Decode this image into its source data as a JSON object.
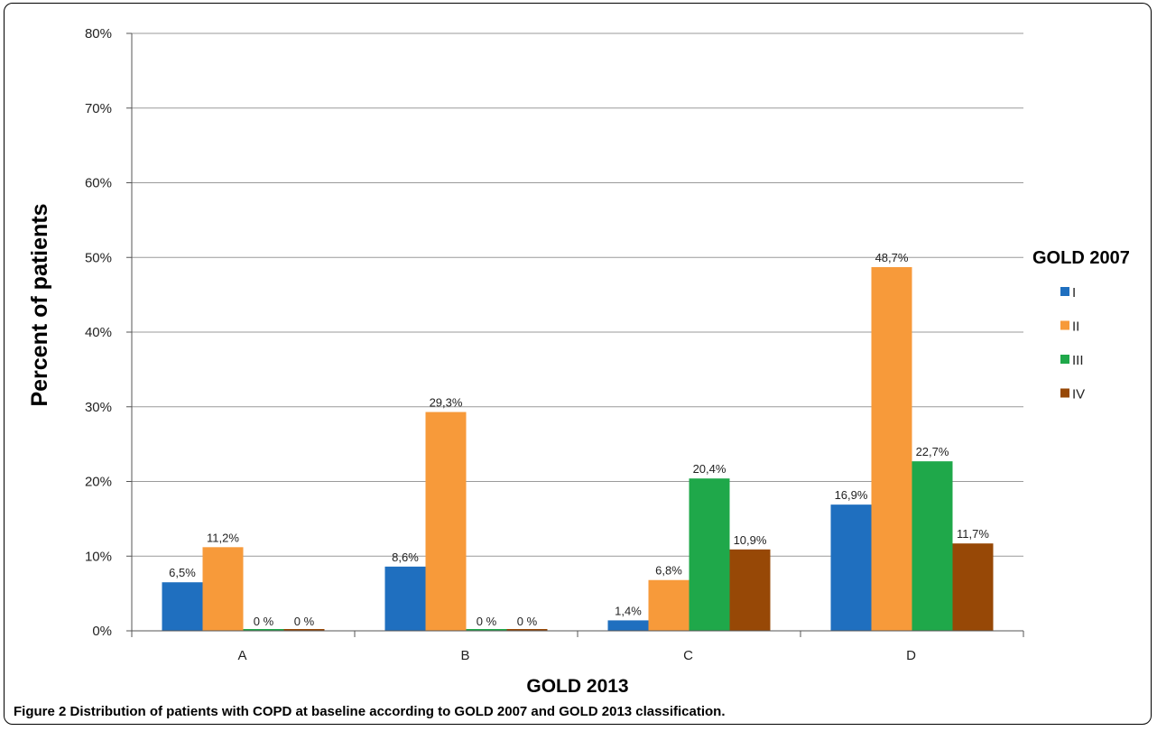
{
  "caption": {
    "label": "Figure 2",
    "text": "Distribution of patients with COPD at baseline according to GOLD 2007 and GOLD 2013 classification."
  },
  "chart_data": {
    "type": "bar",
    "title": "",
    "xlabel": "GOLD 2013",
    "ylabel": "Percent of patients",
    "legend_title": "GOLD 2007",
    "legend_position": "right",
    "grid": true,
    "categories": [
      "A",
      "B",
      "C",
      "D"
    ],
    "ylim": [
      0,
      80
    ],
    "yticks": [
      0,
      10,
      20,
      30,
      40,
      50,
      60,
      70,
      80
    ],
    "ytick_labels": [
      "0%",
      "10%",
      "20%",
      "30%",
      "40%",
      "50%",
      "60%",
      "70%",
      "80%"
    ],
    "series": [
      {
        "name": "I",
        "color": "#1f6fbf",
        "values": [
          6.5,
          8.6,
          1.4,
          16.9
        ],
        "labels": [
          "6,5%",
          "8,6%",
          "1,4%",
          "16,9%"
        ]
      },
      {
        "name": "II",
        "color": "#f79a3a",
        "values": [
          11.2,
          29.3,
          6.8,
          48.7
        ],
        "labels": [
          "11,2%",
          "29,3%",
          "6,8%",
          "48,7%"
        ]
      },
      {
        "name": "III",
        "color": "#1fa84a",
        "values": [
          0,
          0,
          20.4,
          22.7
        ],
        "labels": [
          "0 %",
          "0 %",
          "20,4%",
          "22,7%"
        ]
      },
      {
        "name": "IV",
        "color": "#974806",
        "values": [
          0,
          0,
          10.9,
          11.7
        ],
        "labels": [
          "0 %",
          "0 %",
          "10,9%",
          "11,7%"
        ]
      }
    ]
  }
}
